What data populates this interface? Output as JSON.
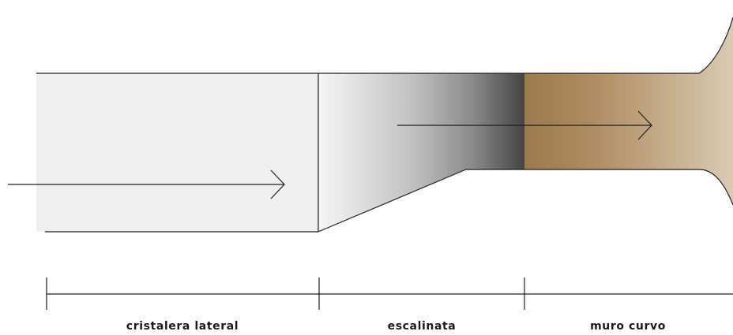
{
  "diagram": {
    "sections": [
      {
        "label": "cristalera lateral"
      },
      {
        "label": "escalinata"
      },
      {
        "label": "muro curvo"
      }
    ]
  },
  "colors": {
    "line": "#1e1e1e",
    "glass_fill": "#efefef",
    "stair_gradient": [
      "#f6f6f6",
      "#c2c2c2",
      "#8a8a8a",
      "#444444"
    ],
    "wall_gradient": [
      "#9b7a4c",
      "#b08e63",
      "#d9cab2"
    ]
  }
}
